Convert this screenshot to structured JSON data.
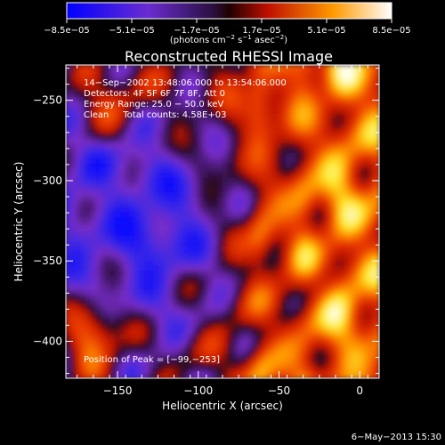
{
  "chart_data": {
    "type": "heatmap",
    "title": "Reconstructed RHESSI Image",
    "xlabel": "Heliocentric X (arcsec)",
    "ylabel": "Heliocentric Y (arcsec)",
    "xlim": [
      -182,
      12
    ],
    "ylim": [
      -423,
      -228
    ],
    "xticks": [
      -150,
      -100,
      -50,
      0
    ],
    "xtick_labels": [
      "−150",
      "−100",
      "−50",
      "0"
    ],
    "yticks": [
      -250,
      -300,
      -350,
      -400
    ],
    "ytick_labels": [
      "−250",
      "−300",
      "−350",
      "−400"
    ],
    "colorbar": {
      "min": -8.5e-05,
      "max": 8.5e-05,
      "tick_labels": [
        "−8.5e−05",
        "−5.1e−05",
        "−1.7e−05",
        "1.7e−05",
        "5.1e−05",
        "8.5e−05"
      ],
      "units_base": "(photons cm",
      "units_sup1": "−2",
      "units_mid": " s",
      "units_sup2": "−1",
      "units_mid2": " asec",
      "units_sup3": "−2",
      "units_end": ")"
    },
    "info_lines": [
      "14−Sep−2002 13:48:06.000 to 13:54:06.000",
      "Detectors: 4F 5F 6F 7F 8F, Att 0",
      "Energy Range: 25.0 − 50.0 keV",
      "Clean     Total counts: 4.58E+03"
    ],
    "peak_label": "Position of Peak = [−99,−253]",
    "peak": [
      -99,
      -253
    ],
    "timestamp": "6−May−2013 15:30",
    "colors": {
      "negative_max": "#1010ff",
      "negative_mid": "#7a2cd0",
      "neutral": "#2a1a40",
      "positive_low": "#d41000",
      "positive_mid": "#ff8a00",
      "positive_max": "#ffffff"
    }
  }
}
